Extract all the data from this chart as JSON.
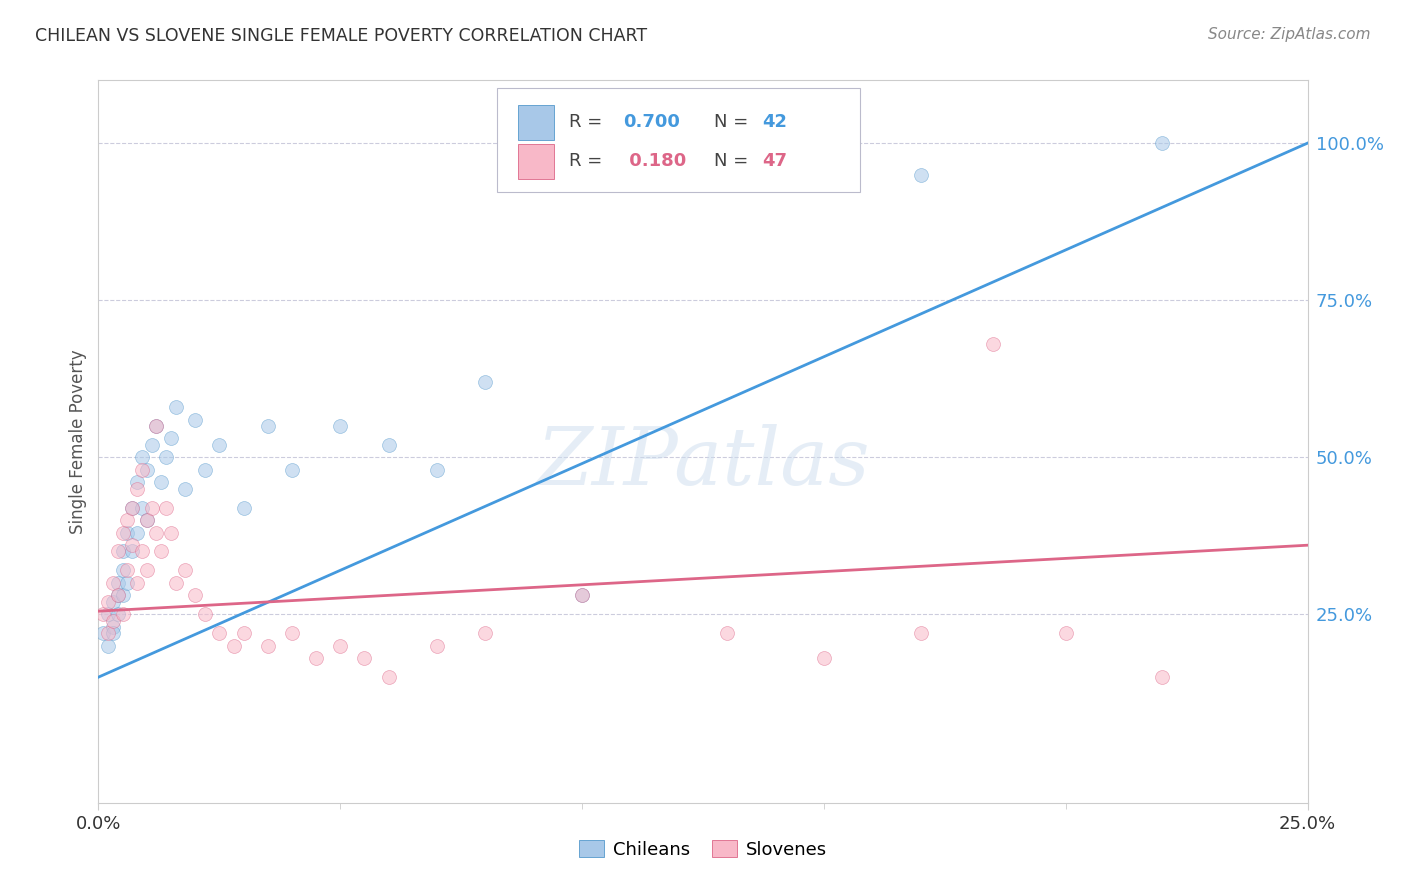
{
  "title": "CHILEAN VS SLOVENE SINGLE FEMALE POVERTY CORRELATION CHART",
  "source": "Source: ZipAtlas.com",
  "ylabel": "Single Female Poverty",
  "xlim": [
    0.0,
    0.25
  ],
  "ylim": [
    -0.05,
    1.1
  ],
  "ytick_values": [
    0.25,
    0.5,
    0.75,
    1.0
  ],
  "chilean_color": "#a8c8e8",
  "chilean_color_dark": "#5599cc",
  "slovene_color": "#f8b8c8",
  "slovene_color_dark": "#dd6688",
  "regression_blue": "#4499dd",
  "regression_pink": "#dd6688",
  "watermark": "ZIPatlas",
  "tick_color_blue": "#4499dd",
  "tick_color_pink": "#dd6688",
  "background_color": "#ffffff",
  "grid_color": "#ccccdd",
  "axis_color": "#cccccc",
  "title_color": "#333333",
  "marker_size": 100,
  "alpha": 0.55,
  "chilean_x": [
    0.001,
    0.002,
    0.002,
    0.003,
    0.003,
    0.003,
    0.004,
    0.004,
    0.004,
    0.005,
    0.005,
    0.005,
    0.006,
    0.006,
    0.007,
    0.007,
    0.008,
    0.008,
    0.009,
    0.009,
    0.01,
    0.01,
    0.011,
    0.012,
    0.013,
    0.014,
    0.015,
    0.016,
    0.018,
    0.02,
    0.022,
    0.025,
    0.03,
    0.035,
    0.04,
    0.05,
    0.06,
    0.07,
    0.08,
    0.1,
    0.17,
    0.22
  ],
  "chilean_y": [
    0.22,
    0.2,
    0.25,
    0.23,
    0.27,
    0.22,
    0.28,
    0.25,
    0.3,
    0.32,
    0.28,
    0.35,
    0.38,
    0.3,
    0.42,
    0.35,
    0.46,
    0.38,
    0.5,
    0.42,
    0.48,
    0.4,
    0.52,
    0.55,
    0.46,
    0.5,
    0.53,
    0.58,
    0.45,
    0.56,
    0.48,
    0.52,
    0.42,
    0.55,
    0.48,
    0.55,
    0.52,
    0.48,
    0.62,
    0.28,
    0.95,
    1.0
  ],
  "slovene_x": [
    0.001,
    0.002,
    0.002,
    0.003,
    0.003,
    0.004,
    0.004,
    0.005,
    0.005,
    0.006,
    0.006,
    0.007,
    0.007,
    0.008,
    0.008,
    0.009,
    0.009,
    0.01,
    0.01,
    0.011,
    0.012,
    0.012,
    0.013,
    0.014,
    0.015,
    0.016,
    0.018,
    0.02,
    0.022,
    0.025,
    0.028,
    0.03,
    0.035,
    0.04,
    0.045,
    0.05,
    0.055,
    0.06,
    0.07,
    0.08,
    0.1,
    0.13,
    0.15,
    0.17,
    0.185,
    0.2,
    0.22
  ],
  "slovene_y": [
    0.25,
    0.27,
    0.22,
    0.3,
    0.24,
    0.35,
    0.28,
    0.38,
    0.25,
    0.4,
    0.32,
    0.42,
    0.36,
    0.45,
    0.3,
    0.48,
    0.35,
    0.4,
    0.32,
    0.42,
    0.38,
    0.55,
    0.35,
    0.42,
    0.38,
    0.3,
    0.32,
    0.28,
    0.25,
    0.22,
    0.2,
    0.22,
    0.2,
    0.22,
    0.18,
    0.2,
    0.18,
    0.15,
    0.2,
    0.22,
    0.28,
    0.22,
    0.18,
    0.22,
    0.68,
    0.22,
    0.15
  ]
}
